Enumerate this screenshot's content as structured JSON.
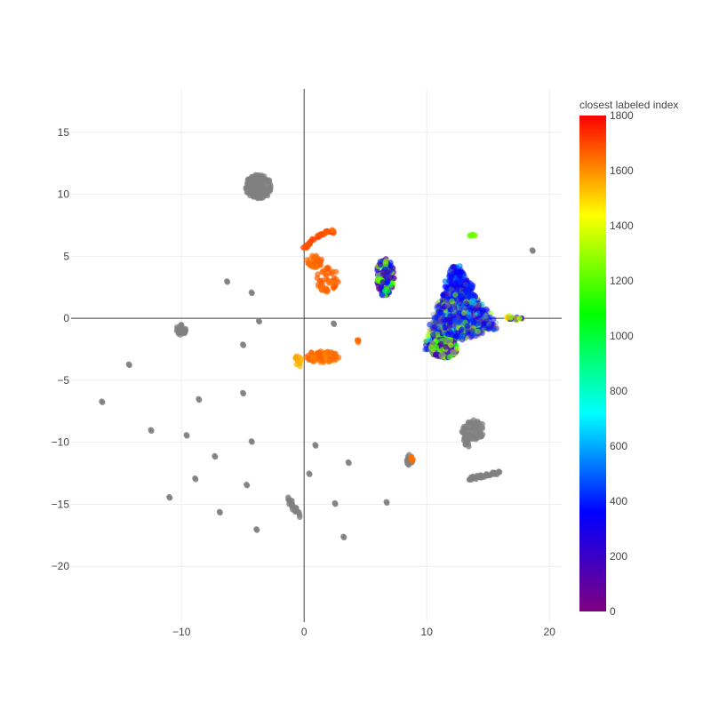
{
  "chart_data": {
    "type": "scatter",
    "title": "",
    "xlabel": "",
    "ylabel": "",
    "xlim": [
      -19,
      21
    ],
    "ylim": [
      -24.5,
      18.5
    ],
    "x_ticks": [
      -10,
      0,
      10,
      20
    ],
    "y_ticks": [
      -20,
      -15,
      -10,
      -5,
      0,
      5,
      10,
      15
    ],
    "x_tick_labels": [
      "−10",
      "0",
      "10",
      "20"
    ],
    "y_tick_labels": [
      "−20",
      "−15",
      "−10",
      "−5",
      "0",
      "5",
      "10",
      "15"
    ],
    "grid": true,
    "zero_lines": true,
    "colorbar": {
      "title": "closest labeled index",
      "min": 0,
      "max": 1800,
      "ticks": [
        0,
        200,
        400,
        600,
        800,
        1000,
        1200,
        1400,
        1600,
        1800
      ],
      "tick_labels": [
        "0",
        "200",
        "400",
        "600",
        "800",
        "1000",
        "1200",
        "1400",
        "1600",
        "1800"
      ],
      "colorscale": [
        "#800080",
        "#0000ff",
        "#00ffff",
        "#00ff00",
        "#ffff00",
        "#ff0000"
      ],
      "position": "right"
    },
    "unlabeled_color": "#808080",
    "clusters": [
      {
        "kind": "blob",
        "cx": -3.7,
        "cy": 10.6,
        "rx": 1.1,
        "ry": 1.0,
        "n": 170,
        "value": null
      },
      {
        "kind": "blob",
        "cx": -10.0,
        "cy": -0.9,
        "rx": 0.45,
        "ry": 0.45,
        "n": 40,
        "value": null
      },
      {
        "kind": "blob",
        "cx": 0.9,
        "cy": 4.6,
        "rx": 0.7,
        "ry": 0.5,
        "n": 40,
        "value": 1650
      },
      {
        "kind": "blob",
        "cx": 1.9,
        "cy": 3.2,
        "rx": 0.9,
        "ry": 1.1,
        "n": 50,
        "value": 1660
      },
      {
        "kind": "blob",
        "cx": 1.5,
        "cy": -3.1,
        "rx": 1.4,
        "ry": 0.45,
        "n": 80,
        "value": 1640
      },
      {
        "kind": "blob",
        "cx": -0.5,
        "cy": -3.4,
        "rx": 0.35,
        "ry": 0.6,
        "n": 15,
        "value": 1560
      },
      {
        "kind": "blob",
        "cx": 6.6,
        "cy": 3.3,
        "rx": 0.75,
        "ry": 1.5,
        "n": 160,
        "value": "mixed-A"
      },
      {
        "kind": "triangle",
        "n": 1400,
        "value": "mixed-B"
      },
      {
        "kind": "blob",
        "cx": 11.4,
        "cy": -2.4,
        "rx": 1.1,
        "ry": 0.8,
        "n": 200,
        "value": "mixed-C"
      },
      {
        "kind": "blob",
        "cx": 13.7,
        "cy": 6.7,
        "rx": 0.25,
        "ry": 0.12,
        "n": 8,
        "value": 1250
      },
      {
        "kind": "blob",
        "cx": 13.8,
        "cy": -9.0,
        "rx": 0.9,
        "ry": 0.8,
        "n": 60,
        "value": null
      },
      {
        "kind": "blob",
        "cx": 8.6,
        "cy": -11.4,
        "rx": 0.25,
        "ry": 0.5,
        "n": 20,
        "value": null
      },
      {
        "kind": "blob",
        "cx": 8.8,
        "cy": -11.3,
        "rx": 0.12,
        "ry": 0.2,
        "n": 6,
        "value": 1650
      },
      {
        "kind": "blob",
        "cx": 4.4,
        "cy": -1.8,
        "rx": 0.1,
        "ry": 0.15,
        "n": 5,
        "value": 1650
      }
    ],
    "arcs": [
      {
        "points": [
          [
            0.0,
            5.6
          ],
          [
            0.6,
            6.2
          ],
          [
            1.3,
            6.7
          ],
          [
            2.0,
            7.0
          ],
          [
            2.4,
            7.0
          ]
        ],
        "n": 40,
        "value": 1680
      },
      {
        "points": [
          [
            13.3,
            -13.0
          ],
          [
            14.5,
            -12.7
          ],
          [
            16.0,
            -12.4
          ]
        ],
        "n": 40,
        "value": null
      },
      {
        "points": [
          [
            -1.5,
            -14.3
          ],
          [
            -0.8,
            -15.3
          ],
          [
            -0.3,
            -16.0
          ]
        ],
        "n": 25,
        "value": null
      },
      {
        "points": [
          [
            13.0,
            -9.2
          ],
          [
            13.2,
            -10.0
          ],
          [
            13.4,
            -10.5
          ]
        ],
        "n": 15,
        "value": null
      },
      {
        "points": [
          [
            16.5,
            0.1
          ],
          [
            17.2,
            -0.1
          ],
          [
            17.8,
            0.0
          ]
        ],
        "n": 20,
        "value": "mixed-D"
      }
    ],
    "isolated_points": [
      [
        -16.5,
        -6.7
      ],
      [
        -14.3,
        -3.7
      ],
      [
        -12.5,
        -9.0
      ],
      [
        -11.0,
        -14.4
      ],
      [
        -9.6,
        -9.4
      ],
      [
        -8.9,
        -12.9
      ],
      [
        -8.6,
        -6.5
      ],
      [
        -7.3,
        -11.1
      ],
      [
        -6.9,
        -15.6
      ],
      [
        -6.3,
        3.0
      ],
      [
        -5.0,
        -2.1
      ],
      [
        -5.0,
        -6.0
      ],
      [
        -4.7,
        -13.4
      ],
      [
        -4.3,
        2.1
      ],
      [
        -4.3,
        -9.9
      ],
      [
        -3.9,
        -17.0
      ],
      [
        -3.7,
        -0.2
      ],
      [
        0.4,
        -12.5
      ],
      [
        0.9,
        -10.2
      ],
      [
        2.4,
        -0.4
      ],
      [
        2.5,
        -14.9
      ],
      [
        3.2,
        -17.6
      ],
      [
        3.6,
        -11.6
      ],
      [
        6.7,
        -14.8
      ],
      [
        18.6,
        5.5
      ]
    ]
  }
}
